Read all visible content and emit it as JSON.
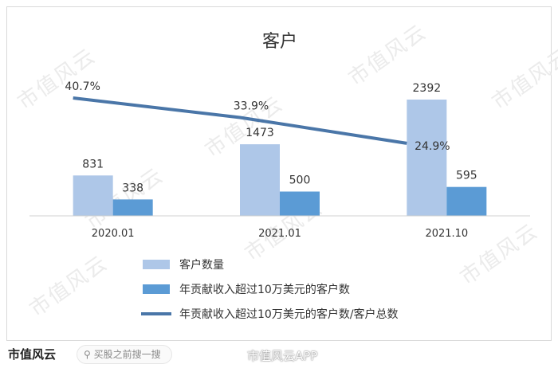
{
  "chart_data": {
    "type": "bar",
    "title": "客户",
    "categories": [
      "2020.01",
      "2021.01",
      "2021.10"
    ],
    "series": [
      {
        "name": "客户数量",
        "type": "bar",
        "color": "#aec7e8",
        "values": [
          831,
          1473,
          2392
        ]
      },
      {
        "name": "年贡献收入超过10万美元的客户数",
        "type": "bar",
        "color": "#5b9bd5",
        "values": [
          338,
          500,
          595
        ]
      },
      {
        "name": "年贡献收入超过10万美元的客户数/客户总数",
        "type": "line",
        "color": "#4a76a8",
        "values": [
          40.7,
          33.9,
          24.9
        ],
        "labels": [
          "40.7%",
          "33.9%",
          "24.9%"
        ]
      }
    ],
    "bar_labels": [
      [
        "831",
        "1473",
        "2392"
      ],
      [
        "338",
        "500",
        "595"
      ]
    ],
    "legend_position": "bottom",
    "grid": false
  },
  "watermark": {
    "text": "市值风云"
  },
  "footer": {
    "brand": "市值风云",
    "search_text": "买股之前搜一搜",
    "credit": "市值风云APP"
  }
}
